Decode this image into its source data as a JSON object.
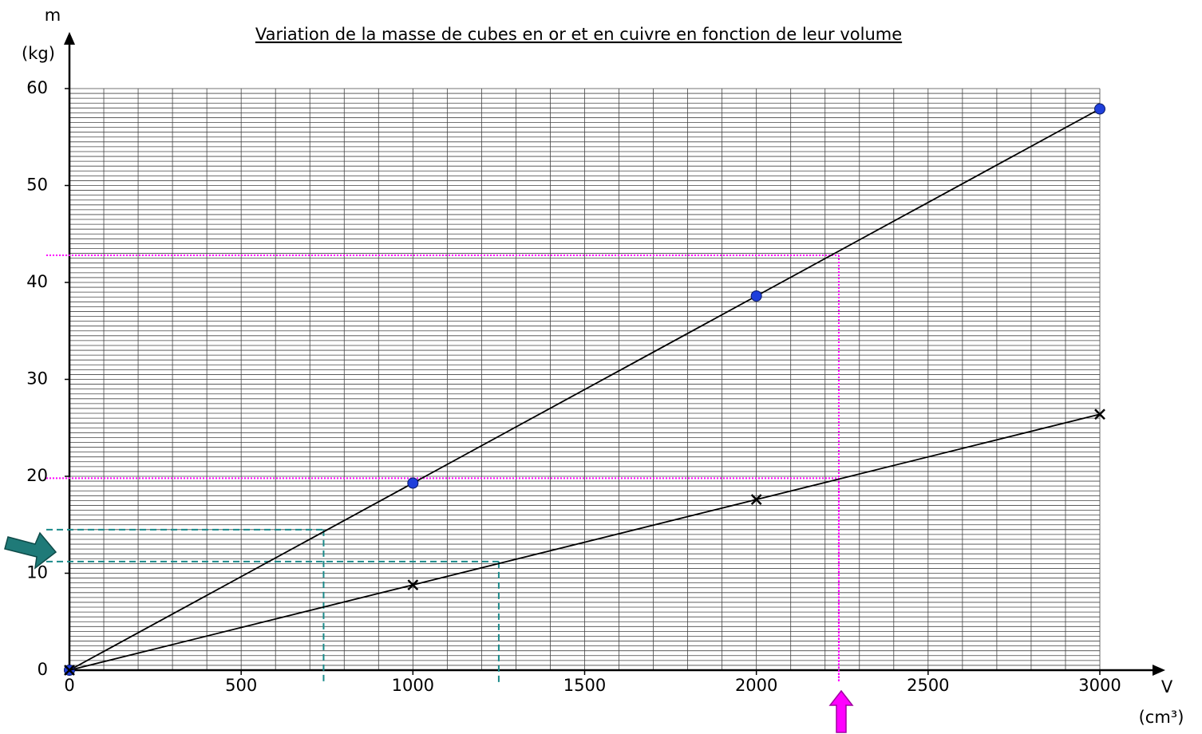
{
  "chart_data": {
    "type": "line",
    "title": "Variation de la masse de cubes en or et en cuivre en fonction de leur volume",
    "y_label": "m",
    "y_unit": "(kg)",
    "x_label": "V",
    "x_unit": "(cm³)",
    "x": [
      0,
      1000,
      2000,
      3000
    ],
    "series": [
      {
        "color": "#1f3fdb",
        "marker": "circle",
        "values": [
          0,
          19.3,
          38.6,
          57.9
        ]
      },
      {
        "color": "#000000",
        "marker": "x",
        "values": [
          0,
          8.8,
          17.6,
          26.4
        ]
      }
    ],
    "xlim": [
      0,
      3000
    ],
    "ylim": [
      0,
      60
    ],
    "xticks": [
      0,
      500,
      1000,
      1500,
      2000,
      2500,
      3000
    ],
    "yticks": [
      0,
      10,
      20,
      30,
      40,
      50,
      60
    ],
    "grid": true,
    "xminor": 100,
    "yminor": 0.5,
    "guides": [
      {
        "x": 2240,
        "y": 42.8,
        "color": "#ff00ff",
        "style": "dotted"
      },
      {
        "x": 2240,
        "y": 19.8,
        "color": "#ff00ff",
        "style": "dotted"
      },
      {
        "x": 740,
        "y": 14.5,
        "color": "#1a8a8a",
        "style": "dashed"
      },
      {
        "x": 1250,
        "y": 11.2,
        "color": "#1a8a8a",
        "style": "dashed"
      }
    ]
  }
}
